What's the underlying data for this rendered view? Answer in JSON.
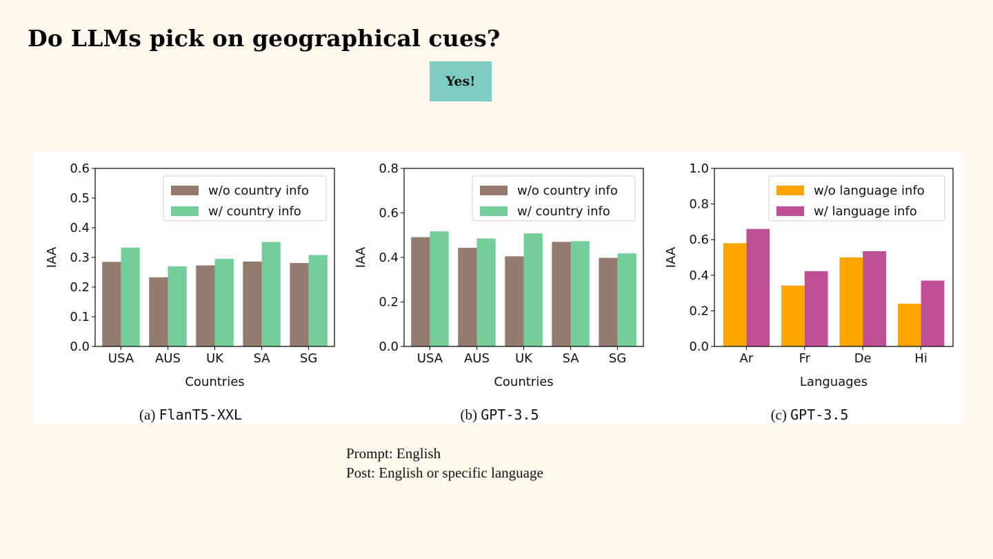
{
  "slide": {
    "title": "Do LLMs pick on geographical cues?",
    "callout": "Yes!",
    "notes": [
      "Prompt: English",
      "Post: English or specific language"
    ]
  },
  "chart_data": [
    {
      "type": "bar",
      "caption_prefix": "(a)",
      "caption_model": "FlanT5-XXL",
      "xlabel": "Countries",
      "ylabel": "IAA",
      "ylim": [
        0,
        0.6
      ],
      "yticks": [
        "0.0",
        "0.1",
        "0.2",
        "0.3",
        "0.4",
        "0.5",
        "0.6"
      ],
      "legend_position": "top-right",
      "categories": [
        "USA",
        "AUS",
        "UK",
        "SA",
        "SG"
      ],
      "series": [
        {
          "name": "w/o country info",
          "color": "#937b6f",
          "values": [
            0.285,
            0.233,
            0.273,
            0.286,
            0.281
          ]
        },
        {
          "name": "w/ country info",
          "color": "#75cd9a",
          "values": [
            0.333,
            0.27,
            0.295,
            0.352,
            0.308
          ]
        }
      ]
    },
    {
      "type": "bar",
      "caption_prefix": "(b)",
      "caption_model": "GPT-3.5",
      "xlabel": "Countries",
      "ylabel": "IAA",
      "ylim": [
        0,
        0.8
      ],
      "yticks": [
        "0.0",
        "0.2",
        "0.4",
        "0.6",
        "0.8"
      ],
      "legend_position": "top-right",
      "categories": [
        "USA",
        "AUS",
        "UK",
        "SA",
        "SG"
      ],
      "series": [
        {
          "name": "w/o country info",
          "color": "#937b6f",
          "values": [
            0.491,
            0.443,
            0.405,
            0.47,
            0.398
          ]
        },
        {
          "name": "w/ country info",
          "color": "#75cd9a",
          "values": [
            0.517,
            0.485,
            0.508,
            0.473,
            0.418
          ]
        }
      ]
    },
    {
      "type": "bar",
      "caption_prefix": "(c)",
      "caption_model": "GPT-3.5",
      "xlabel": "Languages",
      "ylabel": "IAA",
      "ylim": [
        0,
        1.0
      ],
      "yticks": [
        "0.0",
        "0.2",
        "0.4",
        "0.6",
        "0.8",
        "1.0"
      ],
      "legend_position": "top-right",
      "categories": [
        "Ar",
        "Fr",
        "De",
        "Hi"
      ],
      "series": [
        {
          "name": "w/o language info",
          "color": "#ffa500",
          "values": [
            0.58,
            0.342,
            0.5,
            0.24
          ]
        },
        {
          "name": "w/ language info",
          "color": "#bf4f94",
          "values": [
            0.66,
            0.423,
            0.535,
            0.37
          ]
        }
      ]
    }
  ]
}
